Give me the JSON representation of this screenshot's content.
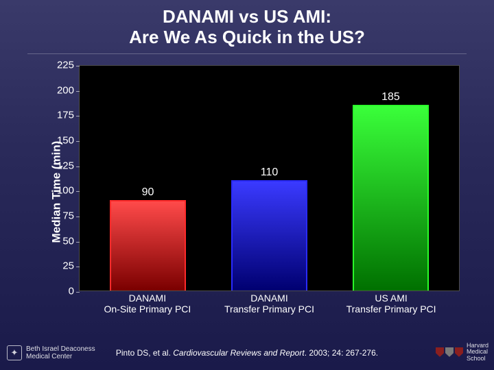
{
  "title": {
    "line1": "DANAMI vs US AMI:",
    "line2": "Are We As Quick in the US?",
    "color": "#ffffff",
    "fontsize": 26,
    "weight": "bold"
  },
  "chart": {
    "type": "bar",
    "background_color": "#000000",
    "plot_border_color": "rgba(255,255,255,0.3)",
    "ylabel": "Median Time (min)",
    "ylabel_fontsize": 17,
    "ylabel_color": "#ffffff",
    "ylim": [
      0,
      225
    ],
    "ytick_step": 25,
    "yticks": [
      0,
      25,
      50,
      75,
      100,
      125,
      150,
      175,
      200,
      225
    ],
    "tick_fontsize": 15,
    "tick_color": "#ffffff",
    "bar_width_pct": 20,
    "bars": [
      {
        "category_line1": "DANAMI",
        "category_line2": "On-Site Primary PCI",
        "value": 90,
        "label": "90",
        "fill_top": "#ff4a4a",
        "fill_bottom": "#7a0000",
        "border": "#ff2a2a",
        "center_pct": 18
      },
      {
        "category_line1": "DANAMI",
        "category_line2": "Transfer Primary PCI",
        "value": 110,
        "label": "110",
        "fill_top": "#3a3aff",
        "fill_bottom": "#000070",
        "border": "#2a2aff",
        "center_pct": 50
      },
      {
        "category_line1": "US AMI",
        "category_line2": "Transfer Primary PCI",
        "value": 185,
        "label": "185",
        "fill_top": "#3aff3a",
        "fill_bottom": "#007000",
        "border": "#2aff2a",
        "center_pct": 82
      }
    ],
    "value_label_fontsize": 16,
    "value_label_color": "#ffffff",
    "xlabel_fontsize": 14,
    "xlabel_color": "#ffffff"
  },
  "citation": {
    "prefix": "Pinto DS, et al. ",
    "italic": "Cardiovascular Reviews and Report",
    "suffix": ". 2003; 24: 267-276.",
    "fontsize": 12,
    "color": "#ffffff"
  },
  "footer_left": {
    "line1": "Beth Israel Deaconess",
    "line2": "Medical Center"
  },
  "footer_right": {
    "line1": "Harvard",
    "line2": "Medical",
    "line3": "School"
  },
  "page_background": "linear-gradient(180deg,#3a3a6a 0%,#2a2a5a 40%,#1a1a4a 100%)"
}
